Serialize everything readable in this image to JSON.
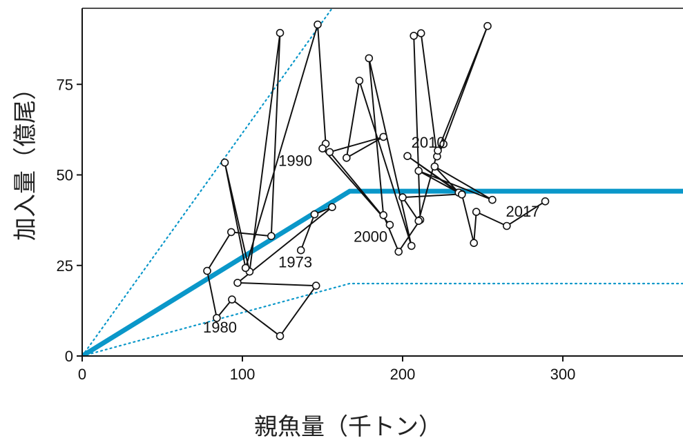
{
  "chart_data": {
    "type": "scatter",
    "xlabel": "親魚量（千トン）",
    "ylabel": "加入量（億尾）",
    "xlim": [
      0,
      375
    ],
    "ylim": [
      0,
      96
    ],
    "x_ticks": [
      0,
      100,
      200,
      300
    ],
    "y_ticks": [
      0,
      25,
      50,
      75
    ],
    "grid": false,
    "colors": {
      "hockey_stick": "#0a97c9",
      "trajectory": "#111111",
      "marker_fill": "#ffffff"
    },
    "series": [
      {
        "type": "line",
        "points": [
          [
            136.5,
            29.2
          ],
          [
            145,
            39.1
          ],
          [
            156,
            41.1
          ],
          [
            97,
            20.2
          ],
          [
            146,
            19.4
          ],
          [
            123.5,
            5.5
          ],
          [
            93.5,
            15.6
          ],
          [
            84,
            10.5
          ],
          [
            78,
            23.5
          ],
          [
            93,
            34.2
          ],
          [
            118,
            33.1
          ],
          [
            123.5,
            89.2
          ],
          [
            104.5,
            23.3
          ],
          [
            89,
            53.4
          ],
          [
            102,
            24.3
          ],
          [
            147,
            91.5
          ],
          [
            152,
            58.6
          ],
          [
            150,
            57.3
          ],
          [
            192,
            36.2
          ],
          [
            154.5,
            56.3
          ],
          [
            188,
            60.5
          ],
          [
            165,
            54.7
          ],
          [
            173,
            76
          ],
          [
            205.5,
            30.4
          ],
          [
            179,
            82.2
          ],
          [
            188,
            38.9
          ],
          [
            197.5,
            28.8
          ],
          [
            211,
            37.6
          ],
          [
            207,
            88.4
          ],
          [
            211.5,
            89.1
          ],
          [
            221.5,
            55.1
          ],
          [
            225.5,
            58.5
          ],
          [
            253,
            91.1
          ],
          [
            222,
            56.7
          ],
          [
            210,
            37.3
          ],
          [
            200,
            43.8
          ],
          [
            237,
            44.7
          ],
          [
            203,
            55.2
          ],
          [
            235,
            45.1
          ],
          [
            220,
            52.3
          ],
          [
            256,
            43.1
          ],
          [
            210,
            51.1
          ],
          [
            237,
            44.6
          ],
          [
            244.5,
            31.2
          ],
          [
            246,
            39.8
          ],
          [
            265,
            35.9
          ],
          [
            289,
            42.7
          ]
        ]
      },
      {
        "type": "line",
        "name": "hockey_stick",
        "points": [
          [
            0,
            0
          ],
          [
            167,
            45.5
          ],
          [
            375,
            45.5
          ]
        ]
      },
      {
        "type": "line",
        "name": "upper_bound",
        "points": [
          [
            0,
            0
          ],
          [
            156,
            96
          ]
        ]
      },
      {
        "type": "line",
        "name": "lower_bound",
        "points": [
          [
            0,
            0
          ],
          [
            167,
            20
          ],
          [
            375,
            20
          ]
        ]
      }
    ],
    "year_labels": [
      {
        "text": "1973",
        "x": 133,
        "y": 24.5
      },
      {
        "text": "1980",
        "x": 86,
        "y": 6.5
      },
      {
        "text": "1990",
        "x": 133,
        "y": 52.5
      },
      {
        "text": "2000",
        "x": 180,
        "y": 31.5
      },
      {
        "text": "2010",
        "x": 216,
        "y": 57.5
      },
      {
        "text": "2017",
        "x": 275,
        "y": 38.5
      }
    ]
  }
}
